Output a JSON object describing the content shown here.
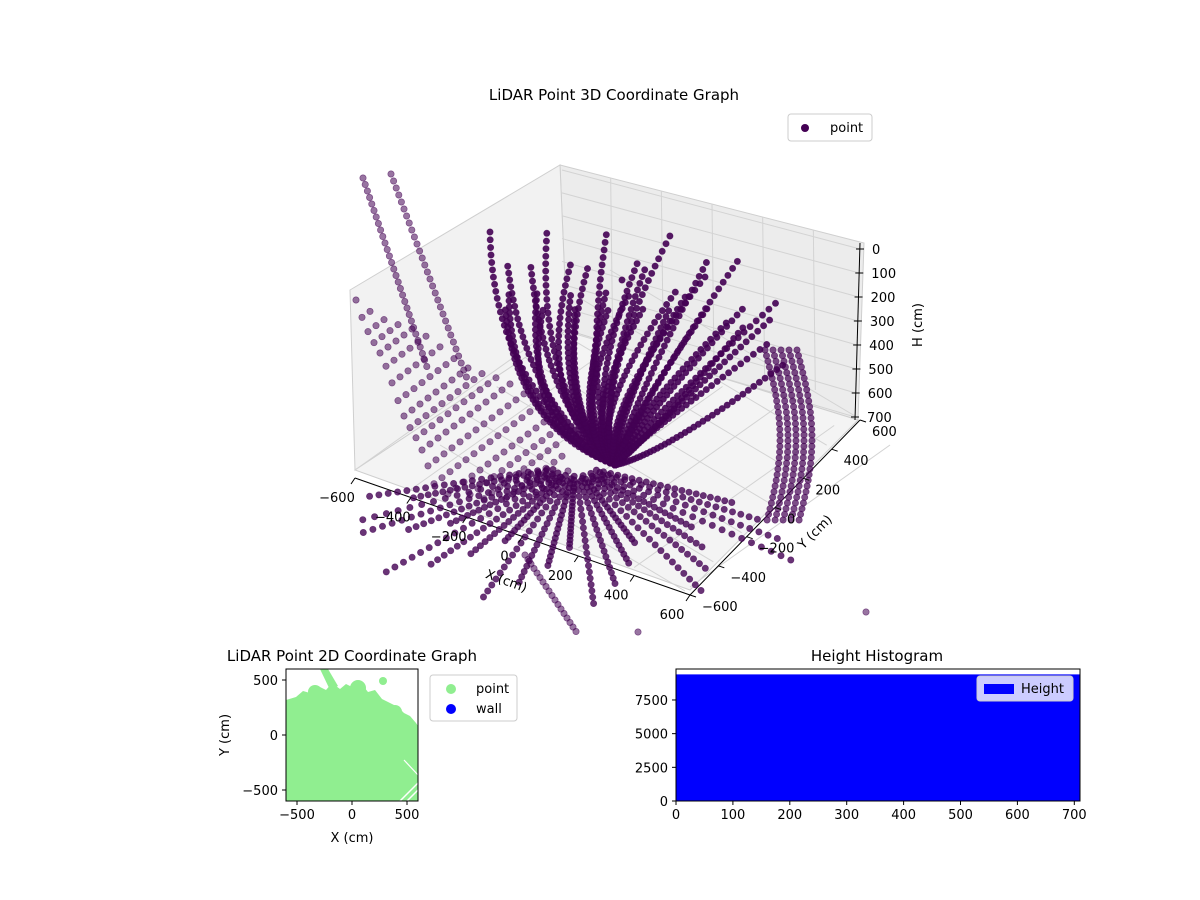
{
  "chart_data": [
    {
      "type": "scatter",
      "title": "LiDAR Point 3D Coordinate Graph",
      "xlabel": "X (cm)",
      "ylabel": "Y (cm)",
      "zlabel": "H (cm)",
      "xlim": [
        -600,
        600
      ],
      "ylim": [
        -600,
        600
      ],
      "zlim": [
        700,
        0
      ],
      "x_ticks": [
        "−600",
        "−400",
        "−200",
        "0",
        "200",
        "400",
        "600"
      ],
      "y_ticks": [
        "−600",
        "−400",
        "−200",
        "0",
        "200",
        "400",
        "600"
      ],
      "z_ticks": [
        "0",
        "100",
        "200",
        "300",
        "400",
        "500",
        "600",
        "700"
      ],
      "legend": {
        "position": "top-right",
        "entries": [
          "point"
        ]
      },
      "series": [
        {
          "name": "point",
          "color": "#440154"
        }
      ]
    },
    {
      "type": "scatter",
      "title": "LiDAR Point 2D Coordinate Graph",
      "xlabel": "X (cm)",
      "ylabel": "Y (cm)",
      "xlim": [
        -600,
        600
      ],
      "ylim": [
        -600,
        600
      ],
      "x_ticks": [
        "−500",
        "0",
        "500"
      ],
      "y_ticks": [
        "−500",
        "0",
        "500"
      ],
      "legend": {
        "position": "outside-right",
        "entries": [
          "point",
          "wall"
        ]
      },
      "series": [
        {
          "name": "point",
          "color": "#90ee90"
        },
        {
          "name": "wall",
          "color": "#0000ff"
        }
      ]
    },
    {
      "type": "bar",
      "title": "Height Histogram",
      "xlim": [
        0,
        710
      ],
      "ylim": [
        0,
        9800
      ],
      "x_ticks": [
        "0",
        "100",
        "200",
        "300",
        "400",
        "500",
        "600",
        "700"
      ],
      "y_ticks": [
        "0",
        "2500",
        "5000",
        "7500"
      ],
      "legend": {
        "position": "top-right",
        "entries": [
          "Height"
        ]
      },
      "series": [
        {
          "name": "Height",
          "color": "#0000ff",
          "bin_range": [
            0,
            710
          ],
          "count": 9400
        }
      ]
    }
  ]
}
